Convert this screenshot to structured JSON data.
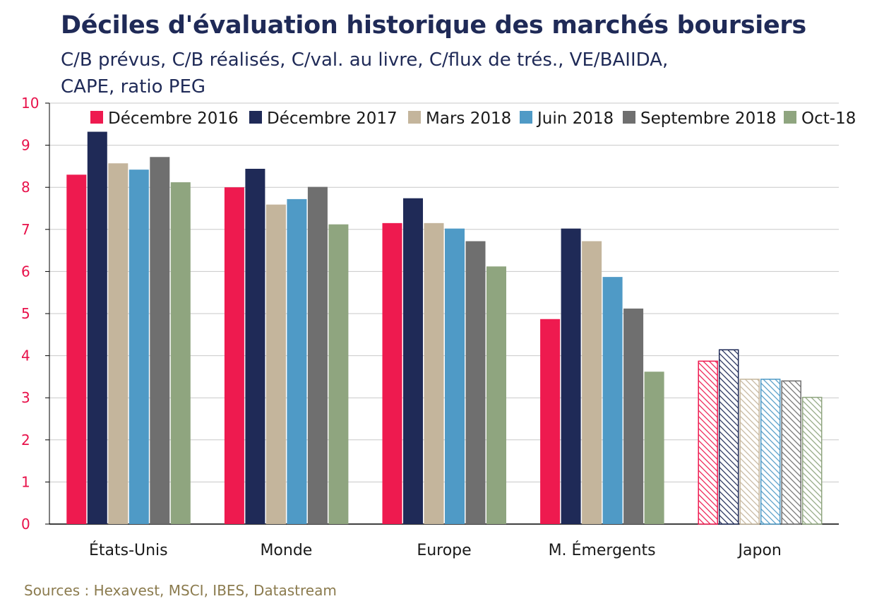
{
  "chart_data": {
    "type": "bar",
    "title": "Déciles d'évaluation historique des marchés boursiers",
    "subtitle_lines": [
      "C/B prévus, C/B réalisés, C/val. au livre, C/flux de trés., VE/BAIIDA,",
      "CAPE, ratio PEG"
    ],
    "categories": [
      "États-Unis",
      "Monde",
      "Europe",
      "M. Émergents",
      "Japon"
    ],
    "hatched_categories": [
      "Japon"
    ],
    "ylim": [
      0,
      10
    ],
    "yticks": [
      "0",
      "1",
      "2",
      "3",
      "4",
      "5",
      "6",
      "7",
      "8",
      "9",
      "10"
    ],
    "grid": true,
    "legend_position": "top",
    "series": [
      {
        "name": "Décembre 2016",
        "color": "#ee1a4f",
        "values": [
          8.3,
          8.0,
          7.15,
          4.87,
          3.87
        ]
      },
      {
        "name": "Décembre 2017",
        "color": "#1f2a57",
        "values": [
          9.32,
          8.44,
          7.74,
          7.02,
          4.14
        ]
      },
      {
        "name": "Mars 2018",
        "color": "#c4b59c",
        "values": [
          8.57,
          7.59,
          7.15,
          6.72,
          3.44
        ]
      },
      {
        "name": "Juin 2018",
        "color": "#4f9ac6",
        "values": [
          8.42,
          7.72,
          7.02,
          5.87,
          3.44
        ]
      },
      {
        "name": "Septembre 2018",
        "color": "#6f6f6f",
        "values": [
          8.72,
          8.01,
          6.72,
          5.12,
          3.4
        ]
      },
      {
        "name": "Oct-18",
        "color": "#8fa57f",
        "values": [
          8.12,
          7.12,
          6.12,
          3.62,
          3.01
        ]
      }
    ]
  },
  "source_note": "Sources : Hexavest, MSCI, IBES, Datastream"
}
